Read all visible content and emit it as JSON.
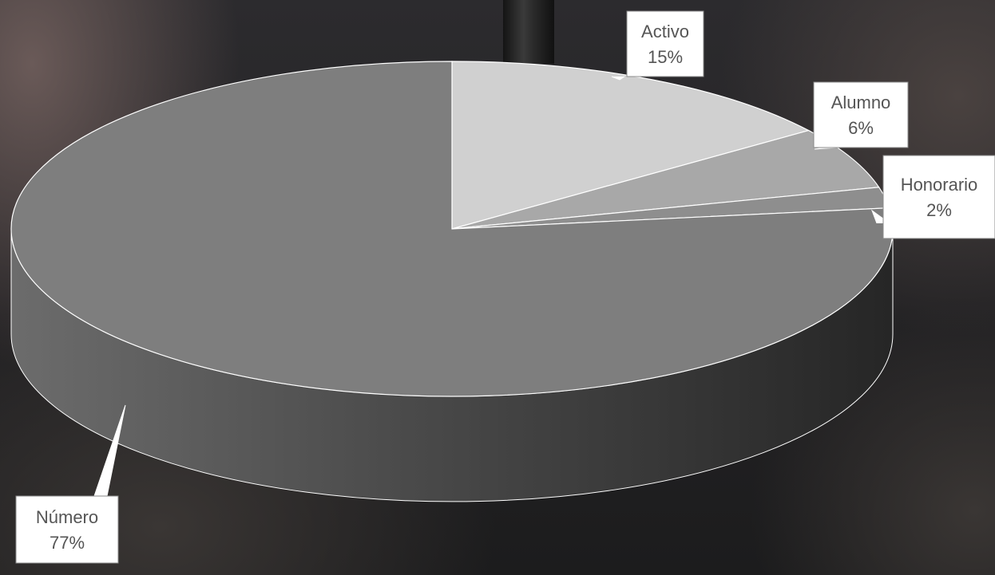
{
  "chart_data": {
    "type": "pie",
    "title": "",
    "slices": [
      {
        "label": "Activo",
        "value": 15,
        "display": "15%",
        "color": "#d0d0d0"
      },
      {
        "label": "Alumno",
        "value": 6,
        "display": "6%",
        "color": "#a8a8a8"
      },
      {
        "label": "Honorario",
        "value": 2,
        "display": "2%",
        "color": "#8e8e8e"
      },
      {
        "label": "Número",
        "value": 77,
        "display": "77%",
        "color": "#7e7e7e"
      }
    ],
    "legend": "none",
    "start_angle": "12 o'clock, clockwise",
    "style": "3d"
  }
}
